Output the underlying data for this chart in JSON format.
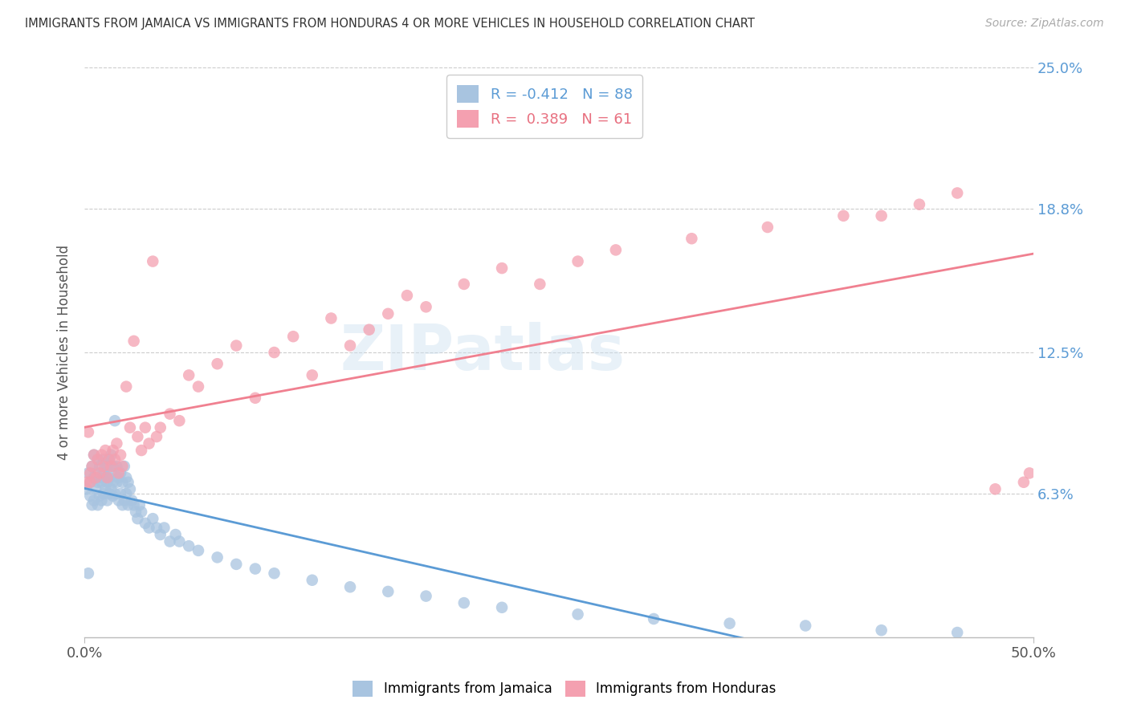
{
  "title": "IMMIGRANTS FROM JAMAICA VS IMMIGRANTS FROM HONDURAS 4 OR MORE VEHICLES IN HOUSEHOLD CORRELATION CHART",
  "source": "Source: ZipAtlas.com",
  "ylabel": "4 or more Vehicles in Household",
  "xlim": [
    0.0,
    0.5
  ],
  "ylim": [
    0.0,
    0.25
  ],
  "xtick_labels": [
    "0.0%",
    "50.0%"
  ],
  "ytick_labels": [
    "6.3%",
    "12.5%",
    "18.8%",
    "25.0%"
  ],
  "ytick_positions": [
    0.063,
    0.125,
    0.188,
    0.25
  ],
  "grid_color": "#cccccc",
  "background_color": "#ffffff",
  "watermark": "ZIPatlas",
  "jamaica_color": "#a8c4e0",
  "honduras_color": "#f4a0b0",
  "jamaica_line_color": "#5b9bd5",
  "honduras_line_color": "#f08090",
  "jamaica_R": -0.412,
  "jamaica_N": 88,
  "honduras_R": 0.389,
  "honduras_N": 61,
  "jamaica_scatter_x": [
    0.001,
    0.002,
    0.002,
    0.003,
    0.003,
    0.004,
    0.004,
    0.005,
    0.005,
    0.005,
    0.006,
    0.006,
    0.007,
    0.007,
    0.007,
    0.008,
    0.008,
    0.008,
    0.009,
    0.009,
    0.01,
    0.01,
    0.01,
    0.011,
    0.011,
    0.011,
    0.012,
    0.012,
    0.012,
    0.013,
    0.013,
    0.013,
    0.014,
    0.014,
    0.014,
    0.015,
    0.015,
    0.015,
    0.016,
    0.016,
    0.017,
    0.017,
    0.018,
    0.018,
    0.019,
    0.019,
    0.02,
    0.02,
    0.021,
    0.021,
    0.022,
    0.022,
    0.023,
    0.023,
    0.024,
    0.025,
    0.026,
    0.027,
    0.028,
    0.029,
    0.03,
    0.032,
    0.034,
    0.036,
    0.038,
    0.04,
    0.042,
    0.045,
    0.048,
    0.05,
    0.055,
    0.06,
    0.07,
    0.08,
    0.09,
    0.1,
    0.12,
    0.14,
    0.16,
    0.18,
    0.2,
    0.22,
    0.26,
    0.3,
    0.34,
    0.38,
    0.42,
    0.46
  ],
  "jamaica_scatter_y": [
    0.065,
    0.028,
    0.072,
    0.062,
    0.068,
    0.058,
    0.075,
    0.06,
    0.07,
    0.08,
    0.065,
    0.072,
    0.058,
    0.068,
    0.078,
    0.062,
    0.07,
    0.075,
    0.06,
    0.068,
    0.063,
    0.072,
    0.078,
    0.065,
    0.07,
    0.075,
    0.06,
    0.068,
    0.075,
    0.063,
    0.07,
    0.078,
    0.065,
    0.072,
    0.08,
    0.062,
    0.068,
    0.075,
    0.063,
    0.095,
    0.068,
    0.075,
    0.06,
    0.07,
    0.063,
    0.072,
    0.058,
    0.068,
    0.06,
    0.075,
    0.063,
    0.07,
    0.058,
    0.068,
    0.065,
    0.06,
    0.058,
    0.055,
    0.052,
    0.058,
    0.055,
    0.05,
    0.048,
    0.052,
    0.048,
    0.045,
    0.048,
    0.042,
    0.045,
    0.042,
    0.04,
    0.038,
    0.035,
    0.032,
    0.03,
    0.028,
    0.025,
    0.022,
    0.02,
    0.018,
    0.015,
    0.013,
    0.01,
    0.008,
    0.006,
    0.005,
    0.003,
    0.002
  ],
  "honduras_scatter_x": [
    0.001,
    0.002,
    0.003,
    0.003,
    0.004,
    0.005,
    0.006,
    0.007,
    0.008,
    0.009,
    0.01,
    0.011,
    0.012,
    0.013,
    0.014,
    0.015,
    0.016,
    0.017,
    0.018,
    0.019,
    0.02,
    0.022,
    0.024,
    0.026,
    0.028,
    0.03,
    0.032,
    0.034,
    0.036,
    0.038,
    0.04,
    0.045,
    0.05,
    0.055,
    0.06,
    0.07,
    0.08,
    0.09,
    0.1,
    0.11,
    0.12,
    0.13,
    0.14,
    0.15,
    0.16,
    0.17,
    0.18,
    0.2,
    0.22,
    0.24,
    0.26,
    0.28,
    0.32,
    0.36,
    0.4,
    0.42,
    0.44,
    0.46,
    0.48,
    0.495,
    0.498
  ],
  "honduras_scatter_y": [
    0.068,
    0.09,
    0.072,
    0.068,
    0.075,
    0.08,
    0.07,
    0.078,
    0.072,
    0.08,
    0.075,
    0.082,
    0.07,
    0.078,
    0.075,
    0.082,
    0.078,
    0.085,
    0.072,
    0.08,
    0.075,
    0.11,
    0.092,
    0.13,
    0.088,
    0.082,
    0.092,
    0.085,
    0.165,
    0.088,
    0.092,
    0.098,
    0.095,
    0.115,
    0.11,
    0.12,
    0.128,
    0.105,
    0.125,
    0.132,
    0.115,
    0.14,
    0.128,
    0.135,
    0.142,
    0.15,
    0.145,
    0.155,
    0.162,
    0.155,
    0.165,
    0.17,
    0.175,
    0.18,
    0.185,
    0.185,
    0.19,
    0.195,
    0.065,
    0.068,
    0.072
  ]
}
